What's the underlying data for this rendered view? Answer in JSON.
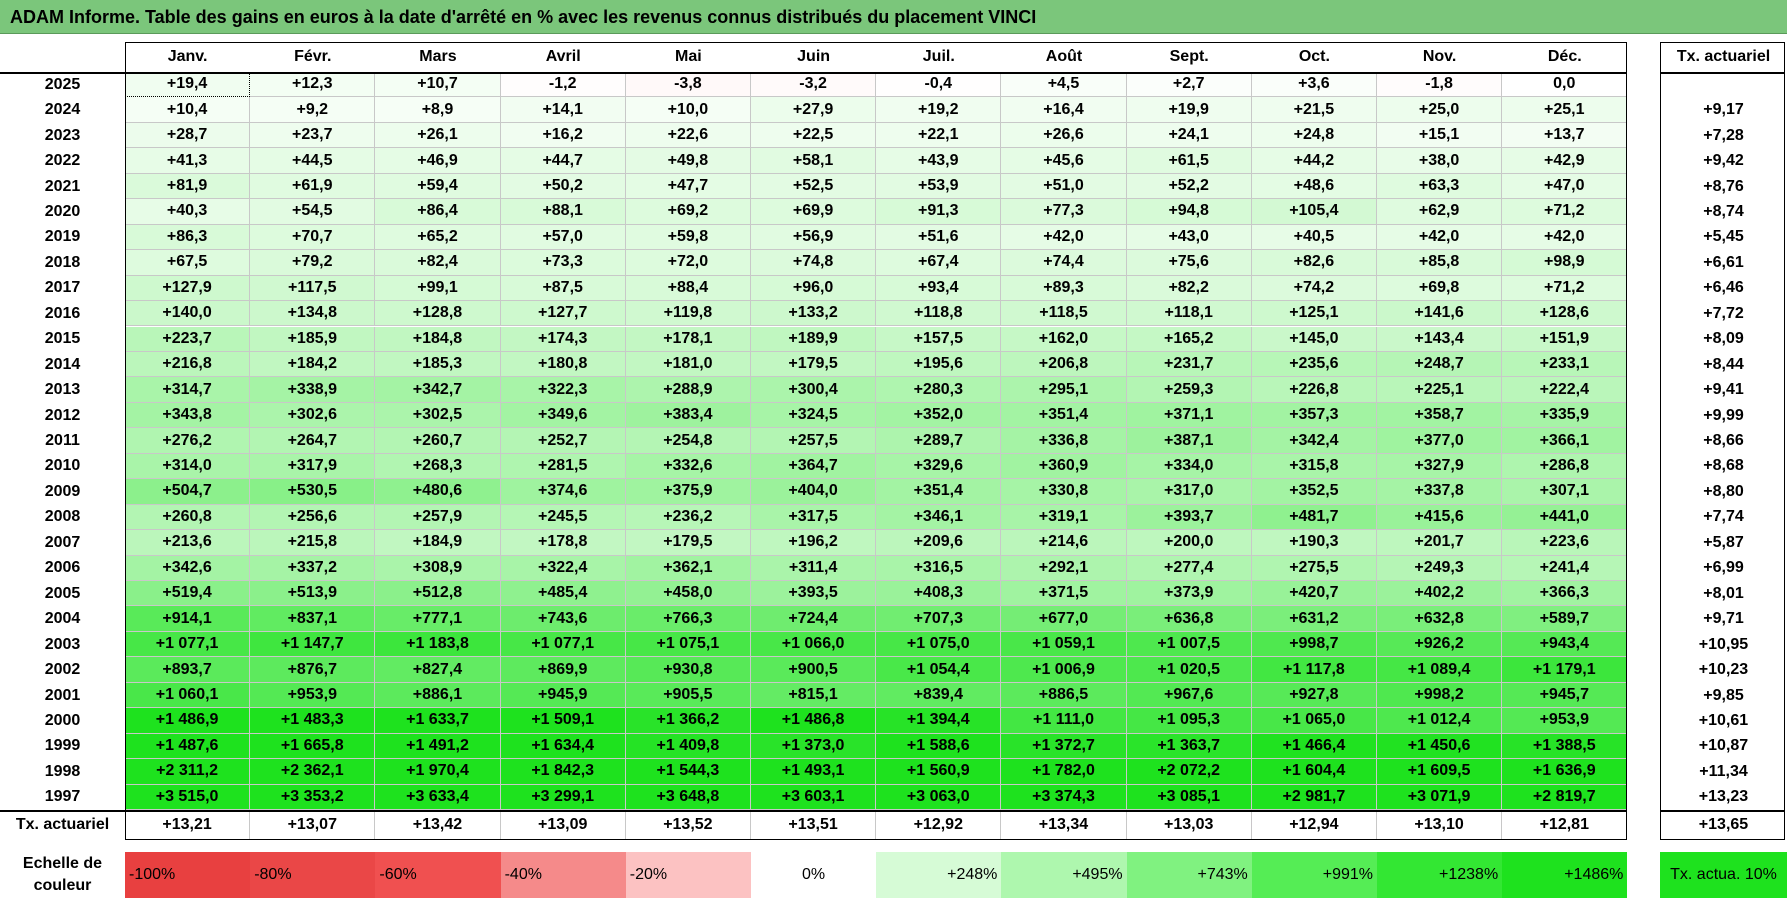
{
  "title": "ADAM Informe. Table des gains en euros à la date d'arrêté en % avec les revenus connus distribués du placement VINCI",
  "months": [
    "Janv.",
    "Févr.",
    "Mars",
    "Avril",
    "Mai",
    "Juin",
    "Juil.",
    "Août",
    "Sept.",
    "Oct.",
    "Nov.",
    "Déc."
  ],
  "tx_header": "Tx. actuariel",
  "rows": [
    {
      "year": "2025",
      "values": [
        "+19,4",
        "+12,3",
        "+10,7",
        "-1,2",
        "-3,8",
        "-3,2",
        "-0,4",
        "+4,5",
        "+2,7",
        "+3,6",
        "-1,8",
        "0,0"
      ],
      "tx": ""
    },
    {
      "year": "2024",
      "values": [
        "+10,4",
        "+9,2",
        "+8,9",
        "+14,1",
        "+10,0",
        "+27,9",
        "+19,2",
        "+16,4",
        "+19,9",
        "+21,5",
        "+25,0",
        "+25,1"
      ],
      "tx": "+9,17"
    },
    {
      "year": "2023",
      "values": [
        "+28,7",
        "+23,7",
        "+26,1",
        "+16,2",
        "+22,6",
        "+22,5",
        "+22,1",
        "+26,6",
        "+24,1",
        "+24,8",
        "+15,1",
        "+13,7"
      ],
      "tx": "+7,28"
    },
    {
      "year": "2022",
      "values": [
        "+41,3",
        "+44,5",
        "+46,9",
        "+44,7",
        "+49,8",
        "+58,1",
        "+43,9",
        "+45,6",
        "+61,5",
        "+44,2",
        "+38,0",
        "+42,9"
      ],
      "tx": "+9,42"
    },
    {
      "year": "2021",
      "values": [
        "+81,9",
        "+61,9",
        "+59,4",
        "+50,2",
        "+47,7",
        "+52,5",
        "+53,9",
        "+51,0",
        "+52,2",
        "+48,6",
        "+63,3",
        "+47,0"
      ],
      "tx": "+8,76"
    },
    {
      "year": "2020",
      "values": [
        "+40,3",
        "+54,5",
        "+86,4",
        "+88,1",
        "+69,2",
        "+69,9",
        "+91,3",
        "+77,3",
        "+94,8",
        "+105,4",
        "+62,9",
        "+71,2"
      ],
      "tx": "+8,74"
    },
    {
      "year": "2019",
      "values": [
        "+86,3",
        "+70,7",
        "+65,2",
        "+57,0",
        "+59,8",
        "+56,9",
        "+51,6",
        "+42,0",
        "+43,0",
        "+40,5",
        "+42,0",
        "+42,0"
      ],
      "tx": "+5,45"
    },
    {
      "year": "2018",
      "values": [
        "+67,5",
        "+79,2",
        "+82,4",
        "+73,3",
        "+72,0",
        "+74,8",
        "+67,4",
        "+74,4",
        "+75,6",
        "+82,6",
        "+85,8",
        "+98,9"
      ],
      "tx": "+6,61"
    },
    {
      "year": "2017",
      "values": [
        "+127,9",
        "+117,5",
        "+99,1",
        "+87,5",
        "+88,4",
        "+96,0",
        "+93,4",
        "+89,3",
        "+82,2",
        "+74,2",
        "+69,8",
        "+71,2"
      ],
      "tx": "+6,46"
    },
    {
      "year": "2016",
      "values": [
        "+140,0",
        "+134,8",
        "+128,8",
        "+127,7",
        "+119,8",
        "+133,2",
        "+118,8",
        "+118,5",
        "+118,1",
        "+125,1",
        "+141,6",
        "+128,6"
      ],
      "tx": "+7,72"
    },
    {
      "year": "2015",
      "values": [
        "+223,7",
        "+185,9",
        "+184,8",
        "+174,3",
        "+178,1",
        "+189,9",
        "+157,5",
        "+162,0",
        "+165,2",
        "+145,0",
        "+143,4",
        "+151,9"
      ],
      "tx": "+8,09"
    },
    {
      "year": "2014",
      "values": [
        "+216,8",
        "+184,2",
        "+185,3",
        "+180,8",
        "+181,0",
        "+179,5",
        "+195,6",
        "+206,8",
        "+231,7",
        "+235,6",
        "+248,7",
        "+233,1"
      ],
      "tx": "+8,44"
    },
    {
      "year": "2013",
      "values": [
        "+314,7",
        "+338,9",
        "+342,7",
        "+322,3",
        "+288,9",
        "+300,4",
        "+280,3",
        "+295,1",
        "+259,3",
        "+226,8",
        "+225,1",
        "+222,4"
      ],
      "tx": "+9,41"
    },
    {
      "year": "2012",
      "values": [
        "+343,8",
        "+302,6",
        "+302,5",
        "+349,6",
        "+383,4",
        "+324,5",
        "+352,0",
        "+351,4",
        "+371,1",
        "+357,3",
        "+358,7",
        "+335,9"
      ],
      "tx": "+9,99"
    },
    {
      "year": "2011",
      "values": [
        "+276,2",
        "+264,7",
        "+260,7",
        "+252,7",
        "+254,8",
        "+257,5",
        "+289,7",
        "+336,8",
        "+387,1",
        "+342,4",
        "+377,0",
        "+366,1"
      ],
      "tx": "+8,66"
    },
    {
      "year": "2010",
      "values": [
        "+314,0",
        "+317,9",
        "+268,3",
        "+281,5",
        "+332,6",
        "+364,7",
        "+329,6",
        "+360,9",
        "+334,0",
        "+315,8",
        "+327,9",
        "+286,8"
      ],
      "tx": "+8,68"
    },
    {
      "year": "2009",
      "values": [
        "+504,7",
        "+530,5",
        "+480,6",
        "+374,6",
        "+375,9",
        "+404,0",
        "+351,4",
        "+330,8",
        "+317,0",
        "+352,5",
        "+337,8",
        "+307,1"
      ],
      "tx": "+8,80"
    },
    {
      "year": "2008",
      "values": [
        "+260,8",
        "+256,6",
        "+257,9",
        "+245,5",
        "+236,2",
        "+317,5",
        "+346,1",
        "+319,1",
        "+393,7",
        "+481,7",
        "+415,6",
        "+441,0"
      ],
      "tx": "+7,74"
    },
    {
      "year": "2007",
      "values": [
        "+213,6",
        "+215,8",
        "+184,9",
        "+178,8",
        "+179,5",
        "+196,2",
        "+209,6",
        "+214,6",
        "+200,0",
        "+190,3",
        "+201,7",
        "+223,6"
      ],
      "tx": "+5,87"
    },
    {
      "year": "2006",
      "values": [
        "+342,6",
        "+337,2",
        "+308,9",
        "+322,4",
        "+362,1",
        "+311,4",
        "+316,5",
        "+292,1",
        "+277,4",
        "+275,5",
        "+249,3",
        "+241,4"
      ],
      "tx": "+6,99"
    },
    {
      "year": "2005",
      "values": [
        "+519,4",
        "+513,9",
        "+512,8",
        "+485,4",
        "+458,0",
        "+393,5",
        "+408,3",
        "+371,5",
        "+373,9",
        "+420,7",
        "+402,2",
        "+366,3"
      ],
      "tx": "+8,01"
    },
    {
      "year": "2004",
      "values": [
        "+914,1",
        "+837,1",
        "+777,1",
        "+743,6",
        "+766,3",
        "+724,4",
        "+707,3",
        "+677,0",
        "+636,8",
        "+631,2",
        "+632,8",
        "+589,7"
      ],
      "tx": "+9,71"
    },
    {
      "year": "2003",
      "values": [
        "+1 077,1",
        "+1 147,7",
        "+1 183,8",
        "+1 077,1",
        "+1 075,1",
        "+1 066,0",
        "+1 075,0",
        "+1 059,1",
        "+1 007,5",
        "+998,7",
        "+926,2",
        "+943,4"
      ],
      "tx": "+10,95"
    },
    {
      "year": "2002",
      "values": [
        "+893,7",
        "+876,7",
        "+827,4",
        "+869,9",
        "+930,8",
        "+900,5",
        "+1 054,4",
        "+1 006,9",
        "+1 020,5",
        "+1 117,8",
        "+1 089,4",
        "+1 179,1"
      ],
      "tx": "+10,23"
    },
    {
      "year": "2001",
      "values": [
        "+1 060,1",
        "+953,9",
        "+886,1",
        "+945,9",
        "+905,5",
        "+815,1",
        "+839,4",
        "+886,5",
        "+967,6",
        "+927,8",
        "+998,2",
        "+945,7"
      ],
      "tx": "+9,85"
    },
    {
      "year": "2000",
      "values": [
        "+1 486,9",
        "+1 483,3",
        "+1 633,7",
        "+1 509,1",
        "+1 366,2",
        "+1 486,8",
        "+1 394,4",
        "+1 111,0",
        "+1 095,3",
        "+1 065,0",
        "+1 012,4",
        "+953,9"
      ],
      "tx": "+10,61"
    },
    {
      "year": "1999",
      "values": [
        "+1 487,6",
        "+1 665,8",
        "+1 491,2",
        "+1 634,4",
        "+1 409,8",
        "+1 373,0",
        "+1 588,6",
        "+1 372,7",
        "+1 363,7",
        "+1 466,4",
        "+1 450,6",
        "+1 388,5"
      ],
      "tx": "+10,87"
    },
    {
      "year": "1998",
      "values": [
        "+2 311,2",
        "+2 362,1",
        "+1 970,4",
        "+1 842,3",
        "+1 544,3",
        "+1 493,1",
        "+1 560,9",
        "+1 782,0",
        "+2 072,2",
        "+1 604,4",
        "+1 609,5",
        "+1 636,9"
      ],
      "tx": "+11,34"
    },
    {
      "year": "1997",
      "values": [
        "+3 515,0",
        "+3 353,2",
        "+3 633,4",
        "+3 299,1",
        "+3 648,8",
        "+3 603,1",
        "+3 063,0",
        "+3 374,3",
        "+3 085,1",
        "+2 981,7",
        "+3 071,9",
        "+2 819,7"
      ],
      "tx": "+13,23"
    }
  ],
  "footer": {
    "label": "Tx. actuariel",
    "values": [
      "+13,21",
      "+13,07",
      "+13,42",
      "+13,09",
      "+13,52",
      "+13,51",
      "+12,92",
      "+13,34",
      "+13,03",
      "+12,94",
      "+13,10",
      "+12,81"
    ],
    "total": "+13,65"
  },
  "scale": {
    "label": "Echelle de couleur",
    "items": [
      {
        "label": "-100%",
        "color": "#e84040"
      },
      {
        "label": "-80%",
        "color": "#ea4747"
      },
      {
        "label": "-60%",
        "color": "#f05050"
      },
      {
        "label": "-40%",
        "color": "#f58a8a"
      },
      {
        "label": "-20%",
        "color": "#fcc2c2"
      },
      {
        "label": "0%",
        "color": "#ffffff"
      },
      {
        "label": "+248%",
        "color": "#d6fbd6"
      },
      {
        "label": "+495%",
        "color": "#aef7ae"
      },
      {
        "label": "+743%",
        "color": "#80f280"
      },
      {
        "label": "+991%",
        "color": "#55ed55"
      },
      {
        "label": "+1238%",
        "color": "#33e733"
      },
      {
        "label": "+1486%",
        "color": "#1ee21e"
      }
    ],
    "reference_label": "Tx. actua. 10%",
    "reference_color": "#1ee21e"
  }
}
